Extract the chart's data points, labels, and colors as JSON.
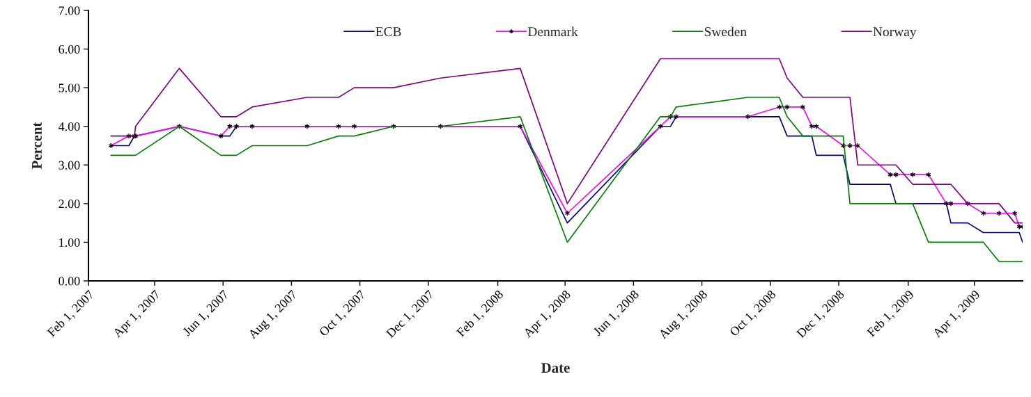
{
  "chart_data": {
    "type": "line",
    "xlabel": "Date",
    "ylabel": "Percent",
    "x": [
      "2007-02-21",
      "2007-03-09",
      "2007-03-14",
      "2007-03-15",
      "2007-04-23",
      "2007-05-30",
      "2007-06-07",
      "2007-06-13",
      "2007-06-27",
      "2007-08-15",
      "2007-09-12",
      "2007-09-26",
      "2007-10-31",
      "2007-12-12",
      "2008-02-21",
      "2008-04-03",
      "2008-06-25",
      "2008-07-04",
      "2008-07-09",
      "2008-09-11",
      "2008-10-09",
      "2008-10-16",
      "2008-10-30",
      "2008-11-07",
      "2008-11-11",
      "2008-12-05",
      "2008-12-11",
      "2008-12-18",
      "2009-01-16",
      "2009-01-21",
      "2009-02-05",
      "2009-02-19",
      "2009-03-07",
      "2009-03-11",
      "2009-03-26",
      "2009-04-09",
      "2009-04-23",
      "2009-05-07",
      "2009-05-11",
      "2009-05-14"
    ],
    "series": [
      {
        "name": "ECB",
        "color": "#000080",
        "values": [
          3.5,
          3.5,
          3.75,
          3.75,
          4.0,
          3.75,
          3.75,
          4.0,
          4.0,
          4.0,
          4.0,
          4.0,
          4.0,
          4.0,
          4.0,
          1.5,
          4.0,
          4.0,
          4.25,
          4.25,
          4.25,
          3.75,
          3.75,
          3.75,
          3.25,
          3.25,
          2.5,
          2.5,
          2.5,
          2.0,
          2.0,
          2.0,
          2.0,
          1.5,
          1.5,
          1.25,
          1.25,
          1.25,
          1.25,
          1.0
        ]
      },
      {
        "name": "Denmark",
        "color": "#ff00ff",
        "marker": "cross",
        "values": [
          3.5,
          3.75,
          3.75,
          3.75,
          4.0,
          3.75,
          4.0,
          4.0,
          4.0,
          4.0,
          4.0,
          4.0,
          4.0,
          4.0,
          4.0,
          1.75,
          4.0,
          4.25,
          4.25,
          4.25,
          4.5,
          4.5,
          4.5,
          4.0,
          4.0,
          3.5,
          3.5,
          3.5,
          2.75,
          2.75,
          2.75,
          2.75,
          2.0,
          2.0,
          2.0,
          1.75,
          1.75,
          1.75,
          1.4,
          1.4
        ]
      },
      {
        "name": "Sweden",
        "color": "#008000",
        "values": [
          3.25,
          3.25,
          3.25,
          3.25,
          4.0,
          3.25,
          3.25,
          3.25,
          3.5,
          3.5,
          3.75,
          3.75,
          4.0,
          4.0,
          4.25,
          1.0,
          4.25,
          4.25,
          4.5,
          4.75,
          4.75,
          4.25,
          3.75,
          3.75,
          3.75,
          3.75,
          2.0,
          2.0,
          2.0,
          2.0,
          2.0,
          1.0,
          1.0,
          1.0,
          1.0,
          1.0,
          0.5,
          0.5,
          0.5,
          0.5
        ]
      },
      {
        "name": "Norway",
        "color": "#800080",
        "values": [
          3.75,
          3.75,
          3.75,
          4.0,
          5.5,
          4.25,
          4.25,
          4.25,
          4.5,
          4.75,
          4.75,
          5.0,
          5.0,
          5.25,
          5.5,
          2.0,
          5.75,
          5.75,
          5.75,
          5.75,
          5.75,
          5.25,
          4.75,
          4.75,
          4.75,
          4.75,
          4.75,
          3.0,
          3.0,
          3.0,
          2.5,
          2.5,
          2.5,
          2.5,
          2.0,
          2.0,
          2.0,
          1.5,
          1.5,
          1.5
        ]
      }
    ],
    "xlim": [
      "2007-02-01",
      "2009-05-14"
    ],
    "xticks": [
      {
        "value": "2007-02-01",
        "label": "Feb 1, 2007"
      },
      {
        "value": "2007-04-01",
        "label": "Apr 1, 2007"
      },
      {
        "value": "2007-06-01",
        "label": "Jun 1, 2007"
      },
      {
        "value": "2007-08-01",
        "label": "Aug 1, 2007"
      },
      {
        "value": "2007-10-01",
        "label": "Oct 1, 2007"
      },
      {
        "value": "2007-12-01",
        "label": "Dec 1, 2007"
      },
      {
        "value": "2008-02-01",
        "label": "Feb 1, 2008"
      },
      {
        "value": "2008-04-01",
        "label": "Apr 1, 2008"
      },
      {
        "value": "2008-06-01",
        "label": "Jun 1, 2008"
      },
      {
        "value": "2008-08-01",
        "label": "Aug 1, 2008"
      },
      {
        "value": "2008-10-01",
        "label": "Oct 1, 2008"
      },
      {
        "value": "2008-12-01",
        "label": "Dec 1, 2008"
      },
      {
        "value": "2009-02-01",
        "label": "Feb 1, 2009"
      },
      {
        "value": "2009-04-01",
        "label": "Apr 1, 2009"
      }
    ],
    "ylim": [
      0,
      7
    ],
    "yticks": [
      {
        "value": 0,
        "label": "0.00"
      },
      {
        "value": 1,
        "label": "1.00"
      },
      {
        "value": 2,
        "label": "2.00"
      },
      {
        "value": 3,
        "label": "3.00"
      },
      {
        "value": 4,
        "label": "4.00"
      },
      {
        "value": 5,
        "label": "5.00"
      },
      {
        "value": 6,
        "label": "6.00"
      },
      {
        "value": 7,
        "label": "7.00"
      }
    ],
    "grid": false,
    "legend": "top",
    "line_style": "solid"
  }
}
